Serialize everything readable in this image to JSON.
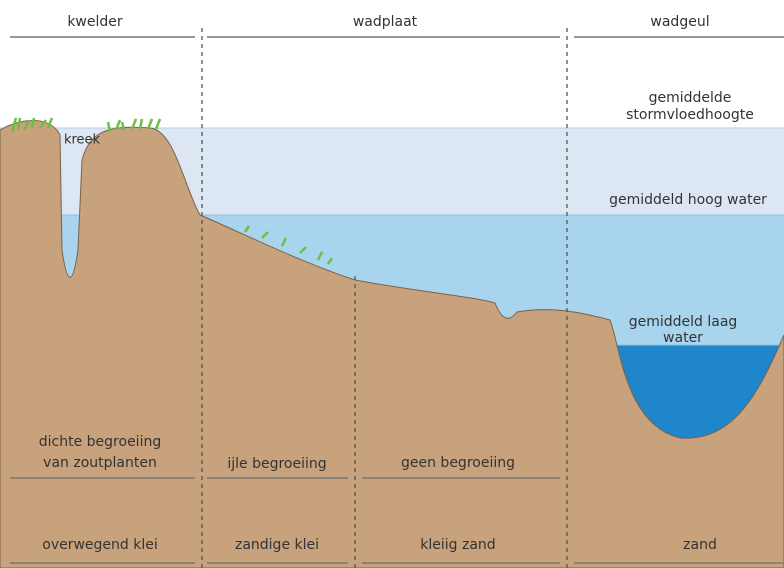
{
  "header": {
    "kwelder": "kwelder",
    "wadplaat": "wadplaat",
    "wadgeul": "wadgeul"
  },
  "annotations": {
    "kreek": "kreek",
    "storm": [
      "gemiddelde",
      "stormvloedhoogte"
    ],
    "high_water": "gemiddeld hoog water",
    "low_water": [
      "gemiddeld laag",
      "water"
    ]
  },
  "vegetation": {
    "kwelder": [
      "dichte begroeiing",
      "van zoutplanten"
    ],
    "wadplaat_1": "ijle begroeiing",
    "wadplaat_2": "geen begroeiing"
  },
  "soil": {
    "kwelder": "overwegend klei",
    "wadplaat_1": "zandige klei",
    "wadplaat_2": "kleiig zand",
    "wadgeul": "zand"
  }
}
